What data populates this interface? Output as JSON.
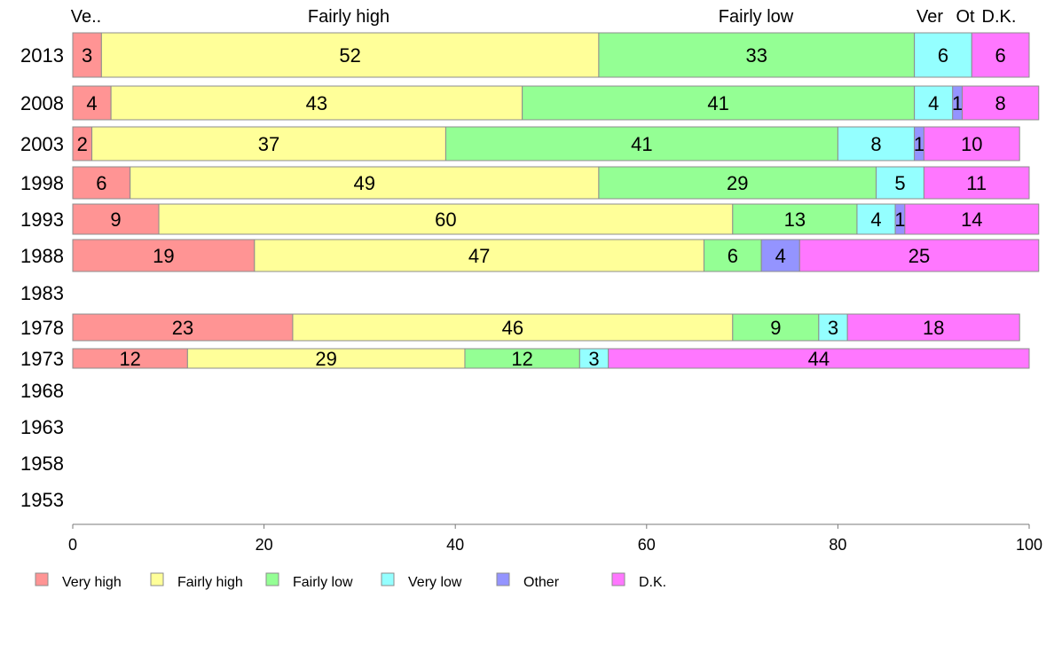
{
  "chart_data": {
    "type": "bar",
    "orientation": "horizontal",
    "stacked": true,
    "categories": [
      "2013",
      "2008",
      "2003",
      "1998",
      "1993",
      "1988",
      "1983",
      "1978",
      "1973",
      "1968",
      "1963",
      "1958",
      "1953"
    ],
    "series": [
      {
        "name": "Very high",
        "color": "#ff9494",
        "values": [
          3,
          4,
          2,
          6,
          9,
          19,
          null,
          23,
          12,
          null,
          null,
          null,
          null
        ]
      },
      {
        "name": "Fairly high",
        "color": "#ffff99",
        "values": [
          52,
          43,
          37,
          49,
          60,
          47,
          null,
          46,
          29,
          null,
          null,
          null,
          null
        ]
      },
      {
        "name": "Fairly low",
        "color": "#94ff94",
        "values": [
          33,
          41,
          41,
          29,
          13,
          6,
          null,
          9,
          12,
          null,
          null,
          null,
          null
        ]
      },
      {
        "name": "Very low",
        "color": "#94ffff",
        "values": [
          6,
          4,
          8,
          5,
          4,
          0,
          null,
          3,
          3,
          null,
          null,
          null,
          null
        ]
      },
      {
        "name": "Other",
        "color": "#9494ff",
        "values": [
          0,
          1,
          1,
          0,
          1,
          4,
          null,
          0,
          0,
          null,
          null,
          null,
          null
        ]
      },
      {
        "name": "D.K.",
        "color": "#ff77ff",
        "values": [
          6,
          8,
          10,
          11,
          14,
          25,
          null,
          18,
          44,
          null,
          null,
          null,
          null
        ]
      }
    ],
    "top_labels": [
      "Ve..",
      "Fairly high",
      "Fairly low",
      "Ver",
      "Ot",
      "D.K."
    ],
    "xlim": [
      0,
      100
    ],
    "xticks": [
      0,
      20,
      40,
      60,
      80,
      100
    ],
    "grid": false,
    "legend_position": "bottom"
  }
}
